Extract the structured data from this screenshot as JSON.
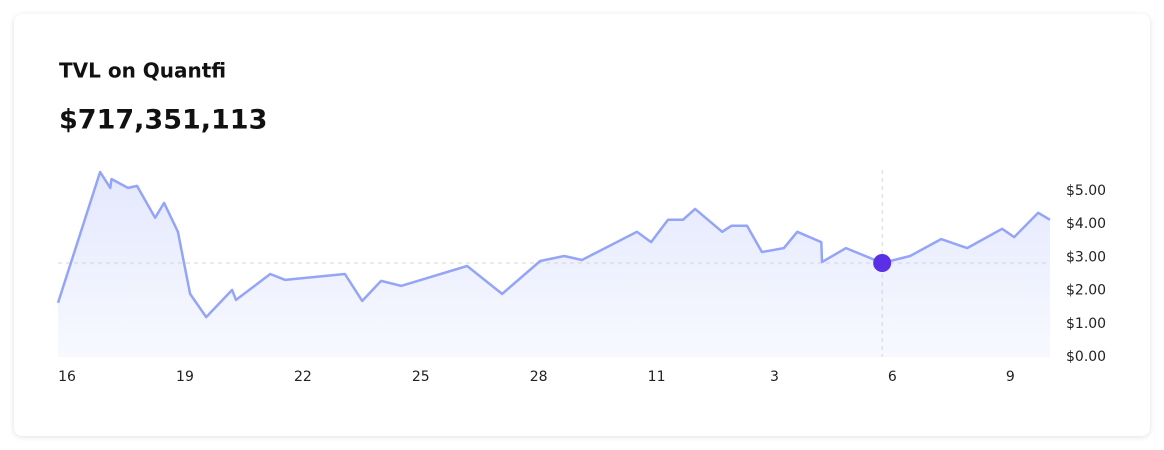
{
  "chart_data": {
    "type": "line",
    "title": "TVL on Quantfi",
    "headline": "$717,351,113",
    "x": [
      -0.23,
      0.84,
      1.1,
      1.13,
      1.55,
      1.78,
      2.24,
      2.47,
      2.82,
      3.13,
      3.54,
      4.2,
      4.3,
      5.17,
      5.55,
      7.07,
      7.51,
      7.99,
      8.5,
      10.18,
      11.07,
      12.04,
      12.65,
      13.1,
      14.5,
      14.86,
      15.29,
      15.67,
      15.98,
      16.67,
      16.9,
      17.3,
      17.68,
      18.24,
      18.58,
      19.19,
      19.21,
      19.82,
      20.74,
      21.45,
      22.24,
      22.9,
      23.79,
      24.1,
      24.71,
      25.01
    ],
    "values": [
      1.63,
      5.57,
      5.09,
      5.36,
      5.09,
      5.15,
      4.19,
      4.64,
      3.77,
      1.9,
      1.2,
      2.02,
      1.72,
      2.5,
      2.32,
      2.5,
      1.69,
      2.29,
      2.14,
      2.74,
      1.9,
      2.89,
      3.04,
      2.92,
      3.77,
      3.46,
      4.13,
      4.13,
      4.46,
      3.77,
      3.95,
      3.95,
      3.16,
      3.28,
      3.77,
      3.46,
      2.86,
      3.28,
      2.83,
      3.04,
      3.55,
      3.28,
      3.86,
      3.61,
      4.34,
      4.13
    ],
    "color": "#94a5f8",
    "highlight_index": 38,
    "highlight_color": "#5a2fe6",
    "xlim": [
      -0.23,
      25.01
    ],
    "xticks": [
      {
        "value": 0,
        "label": "16"
      },
      {
        "value": 3,
        "label": "19"
      },
      {
        "value": 6,
        "label": "22"
      },
      {
        "value": 9,
        "label": "25"
      },
      {
        "value": 12,
        "label": "28"
      },
      {
        "value": 15,
        "label": "11"
      },
      {
        "value": 18,
        "label": "3"
      },
      {
        "value": 21,
        "label": "6"
      },
      {
        "value": 24,
        "label": "9"
      }
    ],
    "ylim": [
      0,
      5.63
    ],
    "yticks": [
      {
        "value": 0,
        "label": "$0.00"
      },
      {
        "value": 1,
        "label": "$1.00"
      },
      {
        "value": 2,
        "label": "$2.00"
      },
      {
        "value": 3,
        "label": "$3.00"
      },
      {
        "value": 4,
        "label": "$4.00"
      },
      {
        "value": 5,
        "label": "$5.00"
      }
    ]
  }
}
